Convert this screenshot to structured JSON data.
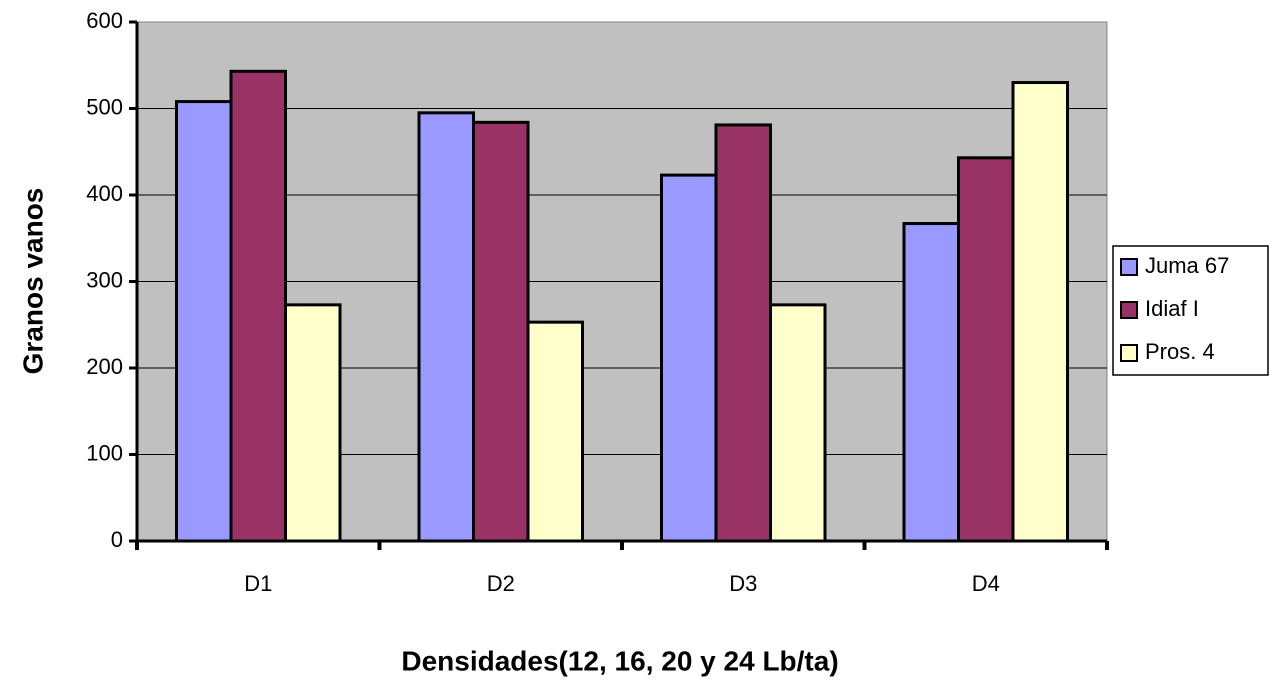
{
  "chart_data": {
    "type": "bar",
    "x_label": "Densidades(12, 16, 20 y 24 Lb/ta)",
    "y_label": "Granos vanos",
    "categories": [
      "D1",
      "D2",
      "D3",
      "D4"
    ],
    "series": [
      {
        "name": "Juma 67",
        "color": "#9999ff",
        "values": [
          508,
          495,
          423,
          367
        ]
      },
      {
        "name": "Idiaf I",
        "color": "#993366",
        "values": [
          543,
          484,
          481,
          443
        ]
      },
      {
        "name": "Pros. 4",
        "color": "#ffffcc",
        "values": [
          273,
          253,
          273,
          530
        ]
      }
    ],
    "ylim": [
      0,
      600
    ],
    "yticks": [
      0,
      100,
      200,
      300,
      400,
      500,
      600
    ],
    "grid": true,
    "legend": "right"
  }
}
